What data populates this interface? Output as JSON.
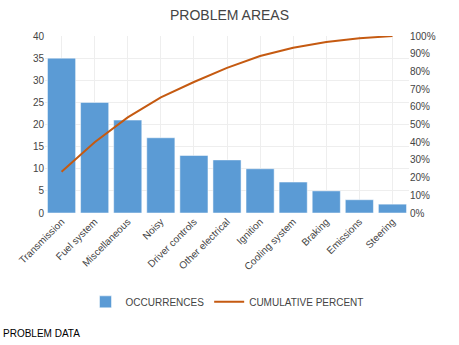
{
  "chart_data": {
    "type": "bar",
    "title": "PROBLEM AREAS",
    "categories": [
      "Transmission",
      "Fuel system",
      "Miscellaneous",
      "Noisy",
      "Driver controls",
      "Other electrical",
      "Ignition",
      "Cooling system",
      "Braking",
      "Emissions",
      "Steering"
    ],
    "series": [
      {
        "name": "OCCURRENCES",
        "type": "bar",
        "color": "#5b9bd5",
        "values": [
          35,
          25,
          21,
          17,
          13,
          12,
          10,
          7,
          5,
          3,
          2
        ]
      },
      {
        "name": "CUMULATIVE PERCENT",
        "type": "line",
        "color": "#c55a11",
        "axis": "y2",
        "values": [
          0.23333333333333334,
          0.4,
          0.54,
          0.6533333333333333,
          0.74,
          0.82,
          0.8866666666666667,
          0.9333333333333333,
          0.9666666666666667,
          0.9866666666666667,
          1.0
        ]
      }
    ],
    "ylim": [
      0,
      40
    ],
    "yticks": [
      0,
      5,
      10,
      15,
      20,
      25,
      30,
      35,
      40
    ],
    "y2lim": [
      0,
      1.0
    ],
    "y2ticks": [
      {
        "value": 0.0,
        "label": "0%"
      },
      {
        "value": 0.1,
        "label": "10%"
      },
      {
        "value": 0.2,
        "label": "20%"
      },
      {
        "value": 0.3,
        "label": "30%"
      },
      {
        "value": 0.4,
        "label": "40%"
      },
      {
        "value": 0.5,
        "label": "50%"
      },
      {
        "value": 0.6,
        "label": "60%"
      },
      {
        "value": 0.7,
        "label": "70%"
      },
      {
        "value": 0.8,
        "label": "80%"
      },
      {
        "value": 0.9,
        "label": "90%"
      },
      {
        "value": 1.0,
        "label": "100%"
      }
    ],
    "grid": true,
    "legend": "bottom",
    "annotations": [
      "PROBLEM DATA"
    ]
  }
}
